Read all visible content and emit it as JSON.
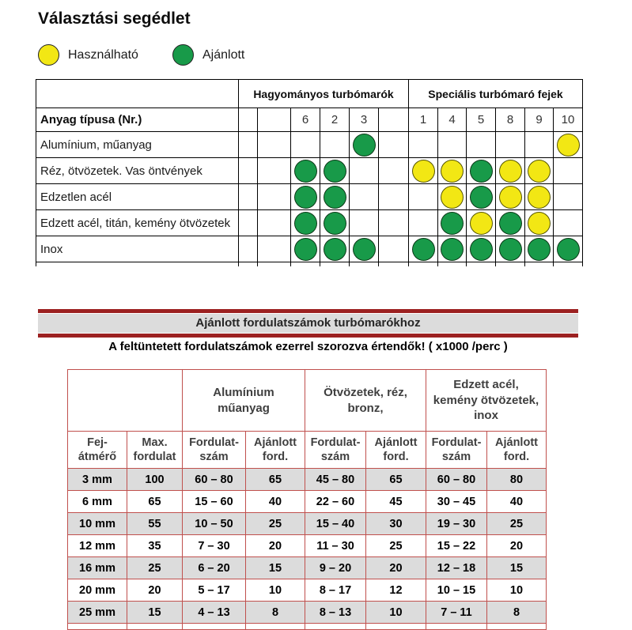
{
  "page": {
    "title": "Választási segédlet"
  },
  "legend": {
    "usable_label": "Használható",
    "recommended_label": "Ajánlott"
  },
  "colors": {
    "recommended_green": "#189a49",
    "usable_yellow": "#f2e714",
    "matrix_border_black": "#000000",
    "rpm_border_red": "#c0504d",
    "banner_dark_red": "#9c2121",
    "row_shade_gray": "#dcdcdc"
  },
  "matrix": {
    "group_conventional": "Hagyományos turbómarók",
    "group_special": "Speciális turbómaró fejek",
    "corner_label": "Anyag típusa (Nr.)",
    "column_numbers": [
      "6",
      "2",
      "3",
      "1",
      "4",
      "5",
      "8",
      "9",
      "10"
    ],
    "rows": [
      {
        "label": "Alumínium, műanyag",
        "cells": [
          "",
          "",
          "G",
          "",
          "",
          "",
          "",
          "",
          "Y"
        ]
      },
      {
        "label": "Réz, ötvözetek. Vas öntvények",
        "cells": [
          "G",
          "G",
          "",
          "Y",
          "Y",
          "G",
          "Y",
          "Y",
          ""
        ]
      },
      {
        "label": "Edzetlen acél",
        "cells": [
          "G",
          "G",
          "",
          "",
          "Y",
          "G",
          "Y",
          "Y",
          ""
        ]
      },
      {
        "label": "Edzett acél, titán, kemény ötvözetek",
        "cells": [
          "G",
          "G",
          "",
          "",
          "G",
          "Y",
          "G",
          "Y",
          ""
        ]
      },
      {
        "label": "Inox",
        "cells": [
          "G",
          "G",
          "G",
          "G",
          "G",
          "G",
          "G",
          "G",
          "G"
        ]
      }
    ]
  },
  "rpm_section": {
    "banner_title": "Ajánlott fordulatszámok turbómarókhoz",
    "note": "A feltüntetett fordulatszámok ezerrel szorozva értendők! ( x1000 /perc )",
    "group_headers": [
      "Alumínium\nműanyag",
      "Ötvözetek, réz,\nbronz,",
      "Edzett acél,\nkemény ötvözetek,\ninox"
    ],
    "column_headers": [
      "Fej-\nátmérő",
      "Max.\nfordulat",
      "Fordulat-\nszám",
      "Ajánlott\nford.",
      "Fordulat-\nszám",
      "Ajánlott\nford.",
      "Fordulat-\nszám",
      "Ajánlott\nford."
    ],
    "rows": [
      [
        "3 mm",
        "100",
        "60 – 80",
        "65",
        "45 – 80",
        "65",
        "60 – 80",
        "80"
      ],
      [
        "6 mm",
        "65",
        "15 – 60",
        "40",
        "22 – 60",
        "45",
        "30 – 45",
        "40"
      ],
      [
        "10 mm",
        "55",
        "10 – 50",
        "25",
        "15 –  40",
        "30",
        "19 – 30",
        "25"
      ],
      [
        "12 mm",
        "35",
        "7 – 30",
        "20",
        "11 – 30",
        "25",
        "15 – 22",
        "20"
      ],
      [
        "16 mm",
        "25",
        "6 – 20",
        "15",
        "9 – 20",
        "20",
        "12 – 18",
        "15"
      ],
      [
        "20 mm",
        "20",
        "5 – 17",
        "10",
        "8 – 17",
        "12",
        "10 – 15",
        "10"
      ],
      [
        "25 mm",
        "15",
        "4 – 13",
        "8",
        "8 – 13",
        "10",
        "7 – 11",
        "8"
      ]
    ]
  }
}
